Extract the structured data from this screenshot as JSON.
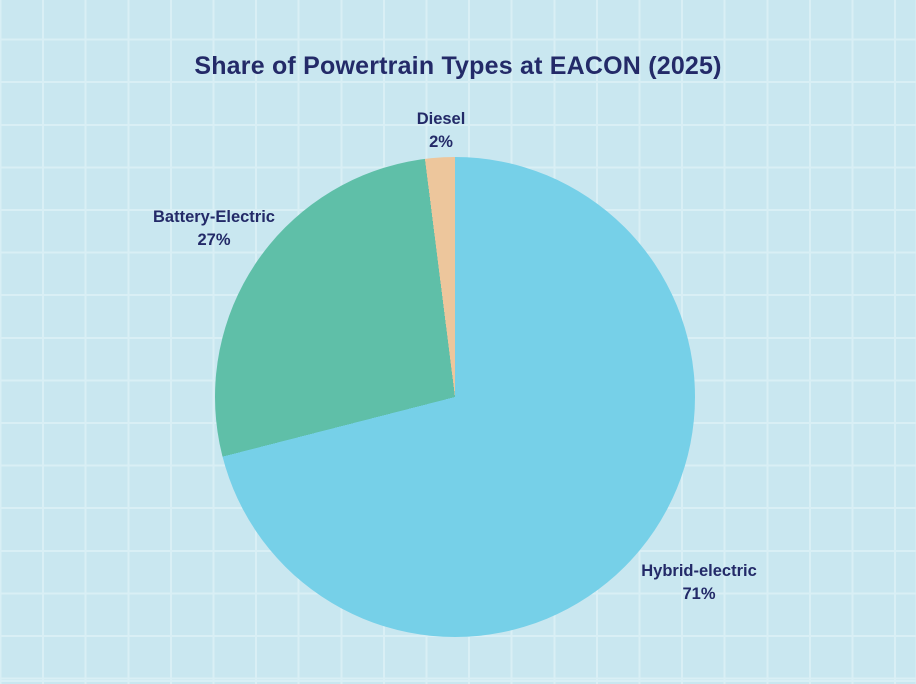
{
  "chart_data": {
    "type": "pie",
    "title": "Share of Powertrain Types at EACON (2025)",
    "start_angle": "12 o'clock",
    "direction": "clockwise",
    "categories": [
      "Hybrid-electric",
      "Battery-Electric",
      "Diesel"
    ],
    "values": [
      71,
      27,
      2
    ],
    "slices": [
      {
        "label": "Hybrid-electric",
        "value": 71,
        "pct_text": "71%",
        "color": "#76D0E8"
      },
      {
        "label": "Battery-Electric",
        "value": 27,
        "pct_text": "27%",
        "color": "#5FBFA8"
      },
      {
        "label": "Diesel",
        "value": 2,
        "pct_text": "2%",
        "color": "#EDC69C"
      }
    ],
    "legend": "none",
    "labels_position": "outside"
  },
  "colors": {
    "background": "#C9E7F0",
    "grid_line": "#D9EFF5",
    "text": "#232A68"
  }
}
